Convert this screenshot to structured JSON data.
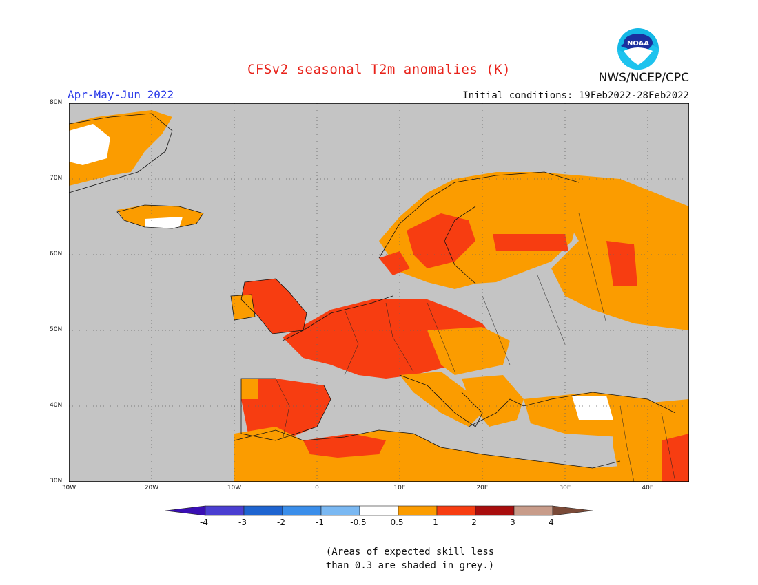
{
  "header": {
    "title": "CFSv2 seasonal T2m anomalies (K)",
    "period": "Apr-May-Jun 2022",
    "agency": "NWS/NCEP/CPC",
    "initial_conditions": "Initial conditions: 19Feb2022-28Feb2022",
    "logo_text": "NOAA"
  },
  "map": {
    "lat_labels": [
      "80N",
      "70N",
      "60N",
      "50N",
      "40N",
      "30N"
    ],
    "lon_labels": [
      "30W",
      "20W",
      "10W",
      "0",
      "10E",
      "20E",
      "30E",
      "40E"
    ],
    "extent": {
      "lon": [
        -30,
        45
      ],
      "lat": [
        30,
        80
      ]
    },
    "ocean_color": "#c4c4c4",
    "grid": "dotted"
  },
  "legend": {
    "labels": [
      "-4",
      "-3",
      "-2",
      "-1",
      "-0.5",
      "0.5",
      "1",
      "2",
      "3",
      "4"
    ],
    "colors": [
      "#3a0fb4",
      "#4a3ed1",
      "#1e64d0",
      "#3a8eea",
      "#7ab8f2",
      "#ffffff",
      "#fb9c00",
      "#f73d11",
      "#a80d0d",
      "#c89c8a",
      "#7a4a38"
    ]
  },
  "note": {
    "line1": "(Areas of expected skill less",
    "line2": "than 0.3 are shaded in grey.)"
  }
}
